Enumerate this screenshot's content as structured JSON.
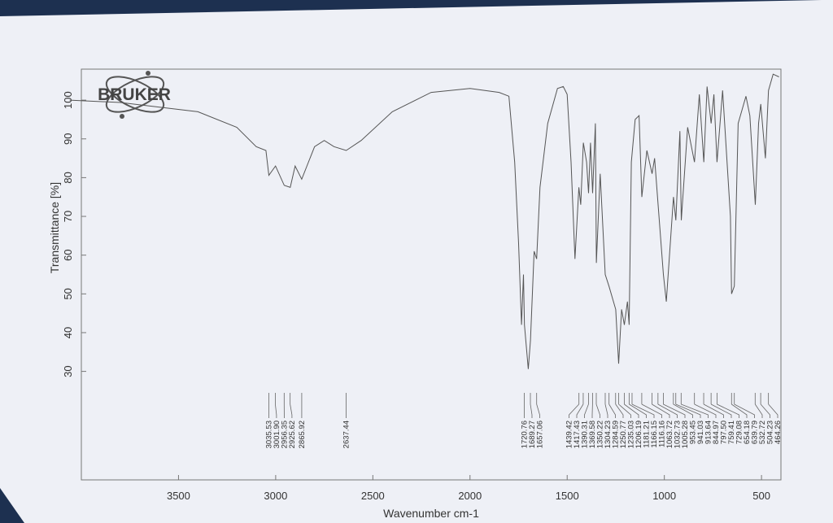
{
  "chart_data": {
    "type": "line",
    "brand": "BRUKER",
    "y_label": "Transmittance [%]",
    "x_label": "Wavenumber cm-1",
    "color": "#555555",
    "xlim": [
      4000,
      400
    ],
    "ylim": [
      2,
      108
    ],
    "xticks": [
      3500,
      3000,
      2500,
      2000,
      1500,
      1000,
      500
    ],
    "yticks": [
      30,
      40,
      50,
      60,
      70,
      80,
      90,
      100
    ],
    "x": [
      4060,
      3800,
      3400,
      3200,
      3100,
      3050,
      3035,
      3001,
      2956,
      2925,
      2900,
      2866,
      2800,
      2750,
      2700,
      2637,
      2560,
      2400,
      2200,
      2000,
      1850,
      1800,
      1770,
      1750,
      1735,
      1725,
      1720,
      1700,
      1689,
      1670,
      1657,
      1640,
      1600,
      1550,
      1520,
      1500,
      1480,
      1460,
      1440,
      1430,
      1417,
      1400,
      1390,
      1380,
      1369,
      1355,
      1350,
      1330,
      1304,
      1285,
      1250,
      1235,
      1220,
      1206,
      1190,
      1181,
      1170,
      1150,
      1130,
      1116,
      1090,
      1063,
      1050,
      1032,
      1005,
      990,
      953,
      941,
      920,
      913,
      880,
      845,
      820,
      797,
      780,
      759,
      745,
      729,
      700,
      660,
      654,
      640,
      620,
      580,
      560,
      532,
      515,
      504,
      480,
      464,
      440,
      410
    ],
    "values": [
      100,
      99.4,
      97,
      93,
      88,
      87,
      80.6,
      83,
      78,
      77.5,
      83,
      79.6,
      88,
      89.6,
      88,
      87,
      89.6,
      97,
      102,
      103,
      102,
      101,
      84,
      63,
      42,
      55,
      42,
      30.6,
      38,
      61,
      59,
      77.5,
      94,
      103,
      103.5,
      101.5,
      84,
      59,
      77.5,
      73,
      89,
      84,
      76,
      89,
      76,
      94,
      58,
      81,
      55,
      52,
      46,
      32,
      46,
      42,
      48,
      42,
      84,
      95,
      96,
      75,
      87,
      81,
      85,
      73,
      55,
      48,
      75,
      69,
      92,
      69,
      93,
      84,
      101.5,
      84,
      103.5,
      94,
      101.5,
      84,
      102.5,
      70,
      50,
      52,
      94,
      101,
      96,
      73,
      94,
      99,
      85,
      102.5,
      106.7,
      106
    ],
    "peaks": [
      3035.53,
      {
        "value": 3001.9,
        "label": "3001.90"
      },
      2956.35,
      2925.62,
      2865.92,
      2637.44,
      1720.76,
      1689.27,
      1657.06,
      1439.42,
      1417.43,
      1390.31,
      1369.58,
      1350.22,
      1304.23,
      1284.59,
      1250.77,
      1235.03,
      1206.19,
      1181.21,
      1166.15,
      1116.16,
      1063.72,
      1032.73,
      1005.28,
      953.45,
      941.03,
      913.64,
      844.97,
      {
        "value": 797.5,
        "label": "797.50"
      },
      759.41,
      729.08,
      654.18,
      639.79,
      532.72,
      504.23,
      464.26
    ]
  }
}
